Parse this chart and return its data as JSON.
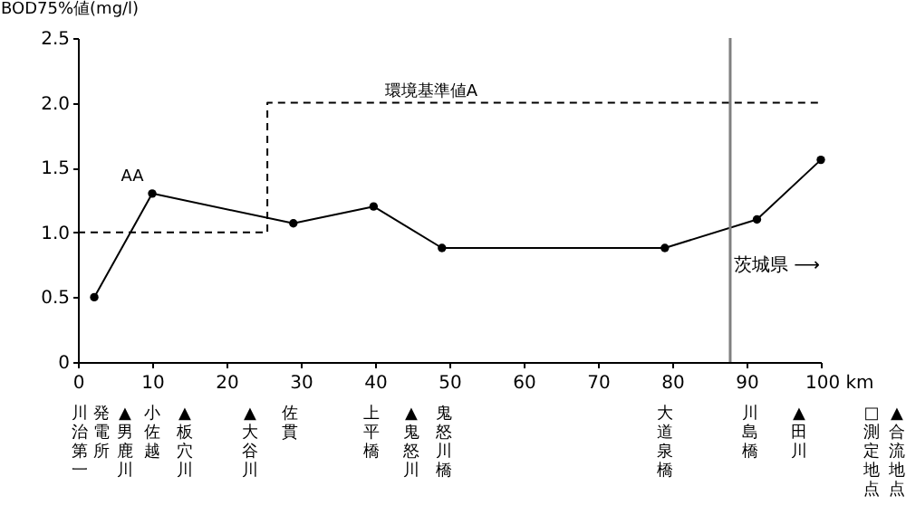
{
  "chart_data": {
    "type": "line",
    "ylabel": "BOD75%値(mg/l)",
    "xlim": [
      0,
      100
    ],
    "xticks": [
      0,
      10,
      20,
      30,
      40,
      50,
      60,
      70,
      80,
      90,
      {
        "value": 100,
        "label": "100 km"
      }
    ],
    "ylim": [
      0,
      2.5
    ],
    "yticks": [
      0,
      0.5,
      {
        "value": 1,
        "label": "1.0"
      },
      1.5,
      {
        "value": 2,
        "label": "2.0"
      },
      2.5
    ],
    "grid": false,
    "marker": "circle",
    "series": [
      {
        "color": "#000000",
        "line_style": "solid",
        "x": [
          2.2,
          10,
          29,
          39.8,
          49,
          79,
          91.4,
          100
        ],
        "values": [
          0.5,
          1.3,
          1.07,
          1.2,
          0.88,
          0.88,
          1.1,
          1.56
        ]
      },
      {
        "type": "step",
        "color": "#000000",
        "line_style": "dashed",
        "marker": "none",
        "x": [
          0,
          25.5,
          100
        ],
        "values": [
          1.0,
          2.0,
          2.0
        ]
      }
    ],
    "ref_lines": [
      {
        "axis": "x",
        "value": 87.8,
        "color": "#808080",
        "line_style": "solid",
        "label": "茨城県 ⟶"
      }
    ],
    "annotations": [
      "AA",
      "環境基準値A",
      "川治第一発電所",
      "▲男鹿川",
      "小佐越",
      "▲板穴川",
      "▲大谷川",
      "佐貫",
      "上平橋",
      "▲鬼怒川",
      "鬼怒川橋",
      "大道泉橋",
      "川島橋",
      "▲田川",
      "□測定地点",
      "▲合流地点"
    ]
  }
}
